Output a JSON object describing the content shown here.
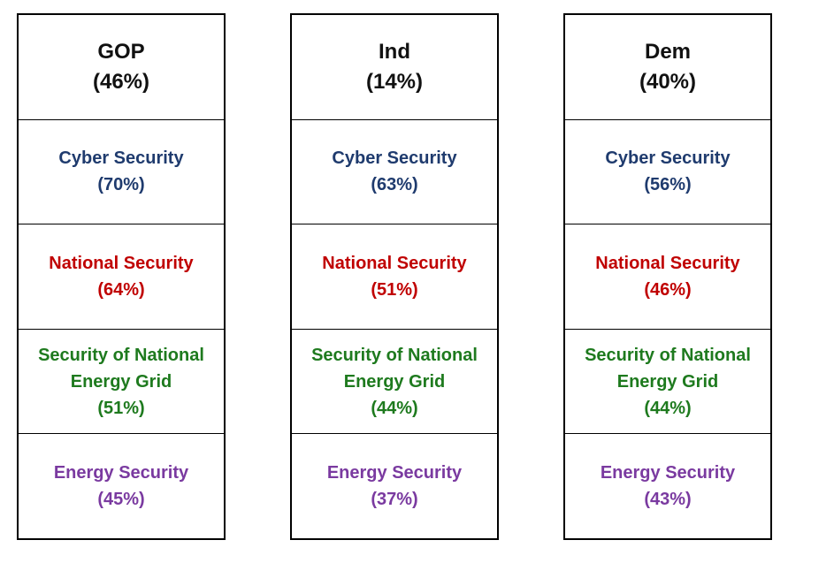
{
  "columns": [
    {
      "party": "GOP",
      "share": "(46%)",
      "issues": [
        {
          "label": "Cyber Security",
          "value": "(70%)",
          "color": "#1f3b6e"
        },
        {
          "label": "National Security",
          "value": "(64%)",
          "color": "#c00000"
        },
        {
          "label_line1": "Security of National",
          "label_line2": "Energy Grid",
          "value": "(51%)",
          "color": "#1e7a1e"
        },
        {
          "label": "Energy Security",
          "value": "(45%)",
          "color": "#7a3aa0"
        }
      ]
    },
    {
      "party": "Ind",
      "share": "(14%)",
      "issues": [
        {
          "label": "Cyber Security",
          "value": "(63%)",
          "color": "#1f3b6e"
        },
        {
          "label": "National Security",
          "value": "(51%)",
          "color": "#c00000"
        },
        {
          "label_line1": "Security of National",
          "label_line2": "Energy Grid",
          "value": "(44%)",
          "color": "#1e7a1e"
        },
        {
          "label": "Energy Security",
          "value": "(37%)",
          "color": "#7a3aa0"
        }
      ]
    },
    {
      "party": "Dem",
      "share": "(40%)",
      "issues": [
        {
          "label": "Cyber Security",
          "value": "(56%)",
          "color": "#1f3b6e"
        },
        {
          "label": "National Security",
          "value": "(46%)",
          "color": "#c00000"
        },
        {
          "label_line1": "Security of National",
          "label_line2": "Energy Grid",
          "value": "(44%)",
          "color": "#1e7a1e"
        },
        {
          "label": "Energy Security",
          "value": "(43%)",
          "color": "#7a3aa0"
        }
      ]
    }
  ]
}
